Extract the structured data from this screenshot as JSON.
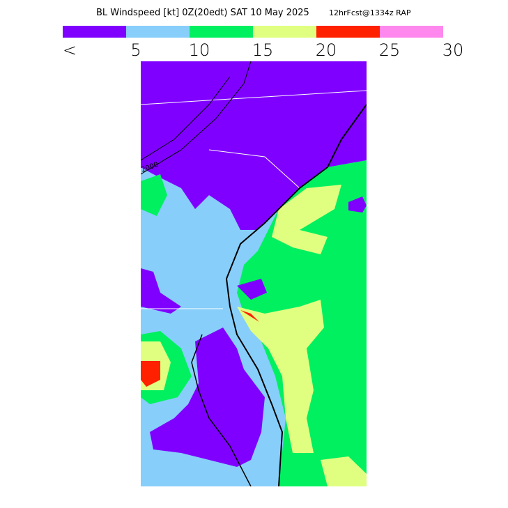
{
  "header": {
    "title": "BL Windspeed [kt] 0Z(20edt) SAT 10 May 2025",
    "forecast": "12hrFcst@1334z RAP"
  },
  "legend": {
    "colors": [
      "#8000ff",
      "#87cefa",
      "#00f060",
      "#e0ff80",
      "#ff2000",
      "#ff88ee"
    ],
    "labels": [
      "<",
      "5",
      "10",
      "15",
      "20",
      "25",
      "30"
    ]
  },
  "map": {
    "contour_label": "2000"
  }
}
